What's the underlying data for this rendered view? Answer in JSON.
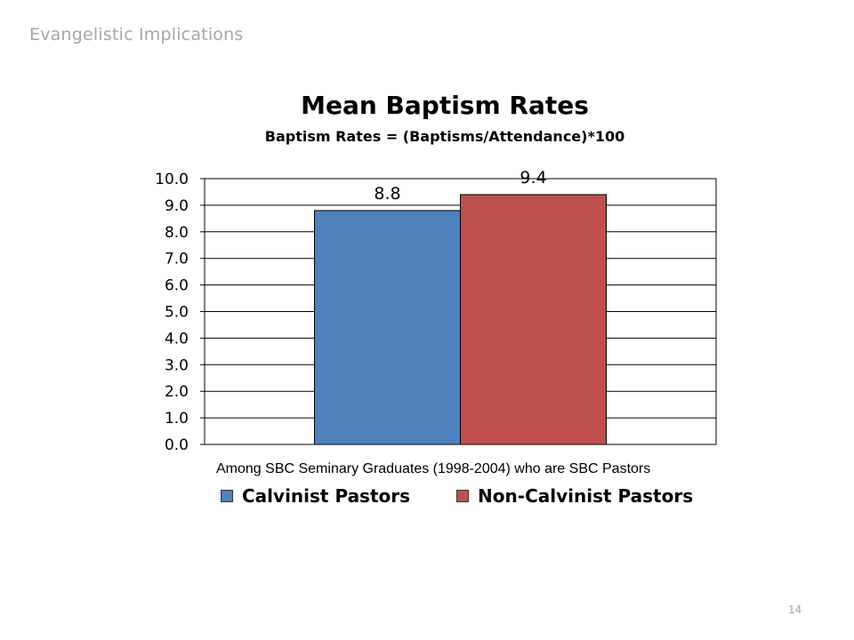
{
  "slide": {
    "header": "Evangelistic Implications",
    "page_number": "14"
  },
  "chart_data": {
    "type": "bar",
    "title": "Mean Baptism Rates",
    "subtitle": "Baptism Rates = (Baptisms/Attendance)*100",
    "xlabel": "Among SBC Seminary Graduates (1998-2004) who are SBC Pastors",
    "ylabel": "",
    "ylim": [
      0,
      10
    ],
    "y_ticks": [
      "0.0",
      "1.0",
      "2.0",
      "3.0",
      "4.0",
      "5.0",
      "6.0",
      "7.0",
      "8.0",
      "9.0",
      "10.0"
    ],
    "grid": true,
    "legend_position": "bottom",
    "series": [
      {
        "name": "Calvinist Pastors",
        "values": [
          8.8
        ],
        "data_label": "8.8",
        "color": "#4f81bd"
      },
      {
        "name": "Non-Calvinist Pastors",
        "values": [
          9.4
        ],
        "data_label": "9.4",
        "color": "#c0504d"
      }
    ]
  }
}
